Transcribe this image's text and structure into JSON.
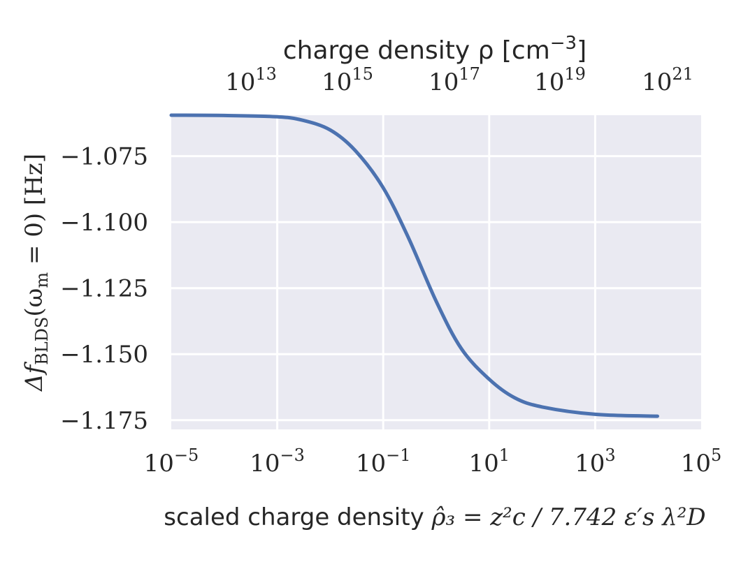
{
  "chart_data": {
    "type": "line",
    "x_scale": "log",
    "xlim": [
      1e-05,
      100000
    ],
    "ylim": [
      -1.1785,
      -1.0595
    ],
    "grid": true,
    "top_axis": {
      "label": "charge density ρ [cm",
      "label_sup": "−3",
      "label_end": "]",
      "ticks": [
        {
          "base": "10",
          "exp": "13"
        },
        {
          "base": "10",
          "exp": "15"
        },
        {
          "base": "10",
          "exp": "17"
        },
        {
          "base": "10",
          "exp": "19"
        },
        {
          "base": "10",
          "exp": "21"
        }
      ]
    },
    "bottom_axis": {
      "label_text": "scaled charge density ",
      "label_formula": "ρ̂₃ = z²c / 7.742 ε′s λ²D",
      "ticks": [
        {
          "base": "10",
          "exp": "−5"
        },
        {
          "base": "10",
          "exp": "−3"
        },
        {
          "base": "10",
          "exp": "−1"
        },
        {
          "base": "10",
          "exp": "1"
        },
        {
          "base": "10",
          "exp": "3"
        },
        {
          "base": "10",
          "exp": "5"
        }
      ]
    },
    "y_axis": {
      "label": "Δf",
      "label_sub": "BLDS",
      "label_paren": "(ω",
      "label_paren_sub": "m",
      "label_tail": " = 0) [Hz]",
      "ticks": [
        "−1.075",
        "−1.100",
        "−1.125",
        "−1.150",
        "−1.175"
      ],
      "tick_values": [
        -1.075,
        -1.1,
        -1.125,
        -1.15,
        -1.175
      ]
    },
    "series": [
      {
        "color": "#4c72b0",
        "x": [
          1e-05,
          0.0001,
          0.001,
          0.003,
          0.01,
          0.03,
          0.1,
          0.3,
          1,
          3,
          10,
          30,
          100,
          1000,
          15000
        ],
        "y": [
          -1.0595,
          -1.0596,
          -1.0601,
          -1.0614,
          -1.0651,
          -1.073,
          -1.087,
          -1.106,
          -1.13,
          -1.148,
          -1.1595,
          -1.1665,
          -1.17,
          -1.1728,
          -1.1735
        ]
      }
    ]
  }
}
